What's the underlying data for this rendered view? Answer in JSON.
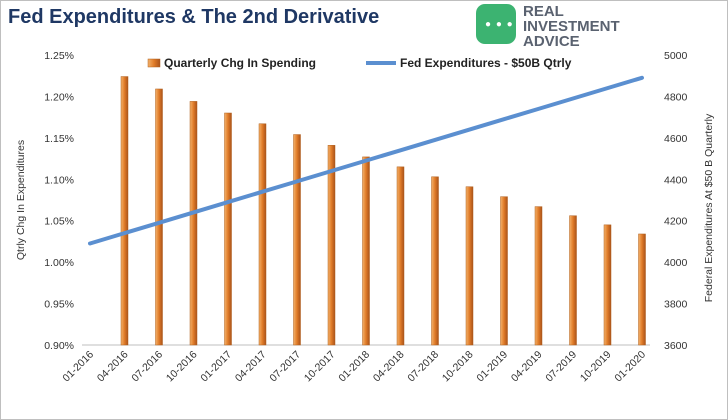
{
  "chart_data": {
    "type": "bar+line",
    "title": "Fed Expenditures & The 2nd Derivative",
    "categories": [
      "01-2016",
      "04-2016",
      "07-2016",
      "10-2016",
      "01-2017",
      "04-2017",
      "07-2017",
      "10-2017",
      "01-2018",
      "04-2018",
      "07-2018",
      "10-2018",
      "01-2019",
      "04-2019",
      "07-2019",
      "10-2019",
      "01-2020"
    ],
    "series": [
      {
        "name": "Quarterly Chg In Spending",
        "type": "bar",
        "axis": "left",
        "color": "#e07b28",
        "values": [
          null,
          1.224,
          1.209,
          1.194,
          1.18,
          1.167,
          1.154,
          1.141,
          1.127,
          1.115,
          1.103,
          1.091,
          1.079,
          1.067,
          1.056,
          1.045,
          1.034
        ]
      },
      {
        "name": "Fed Expenditures - $50B Qtrly",
        "type": "line",
        "axis": "right",
        "color": "#5b8fd0",
        "values": [
          4090,
          4140,
          4190,
          4240,
          4290,
          4340,
          4390,
          4440,
          4490,
          4540,
          4590,
          4640,
          4690,
          4740,
          4790,
          4840,
          4890
        ]
      }
    ],
    "ylabel": "Qtrly Chg In Expenditures",
    "y2label": "Federal Expenditures At $50 B Quarterly",
    "ylim": [
      0.9,
      1.25
    ],
    "y2lim": [
      3600,
      5000
    ],
    "yticks": [
      "0.90%",
      "0.95%",
      "1.00%",
      "1.05%",
      "1.10%",
      "1.15%",
      "1.20%",
      "1.25%"
    ],
    "y2ticks": [
      "3600",
      "3800",
      "4000",
      "4200",
      "4400",
      "4600",
      "4800",
      "5000"
    ],
    "legend_position": "top",
    "grid": false
  },
  "logo": {
    "line1": "REAL",
    "line2": "INVESTMENT",
    "line3": "ADVICE",
    "badge_color": "#3cb371"
  }
}
